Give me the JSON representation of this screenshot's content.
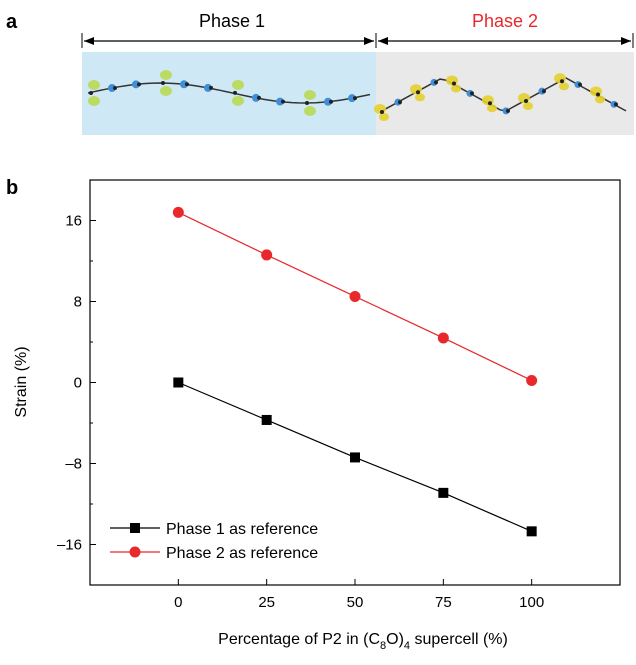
{
  "panel_a": {
    "label": "a",
    "phase1_label": "Phase 1",
    "phase2_label": "Phase 2",
    "phase1_bg": "#cfe8f5",
    "phase2_bg": "#e8e9e8",
    "phase1_text_color": "#000000",
    "phase2_text_color": "#e8282b"
  },
  "panel_b": {
    "label": "b"
  },
  "chart_data": {
    "type": "line",
    "xlabel_prefix": "Percentage of P2 in (C",
    "xlabel_sub1": "8",
    "xlabel_mid": "O)",
    "xlabel_sub2": "4",
    "xlabel_suffix": " supercell (%)",
    "ylabel": "Strain (%)",
    "x": [
      0,
      25,
      50,
      75,
      100
    ],
    "xticks": [
      0,
      25,
      50,
      75,
      100
    ],
    "yticks": [
      16,
      8,
      0,
      -8,
      -16
    ],
    "xlim": [
      -25,
      125
    ],
    "ylim": [
      -20,
      20
    ],
    "legend_position": "bottom-left",
    "series": [
      {
        "name": "Phase 1 as reference",
        "values": [
          0,
          -3.7,
          -7.4,
          -10.9,
          -14.7
        ],
        "color": "#000000",
        "marker": "square"
      },
      {
        "name": "Phase 2 as reference",
        "values": [
          16.8,
          12.6,
          8.5,
          4.4,
          0.2
        ],
        "color": "#e8282b",
        "marker": "circle"
      }
    ]
  }
}
